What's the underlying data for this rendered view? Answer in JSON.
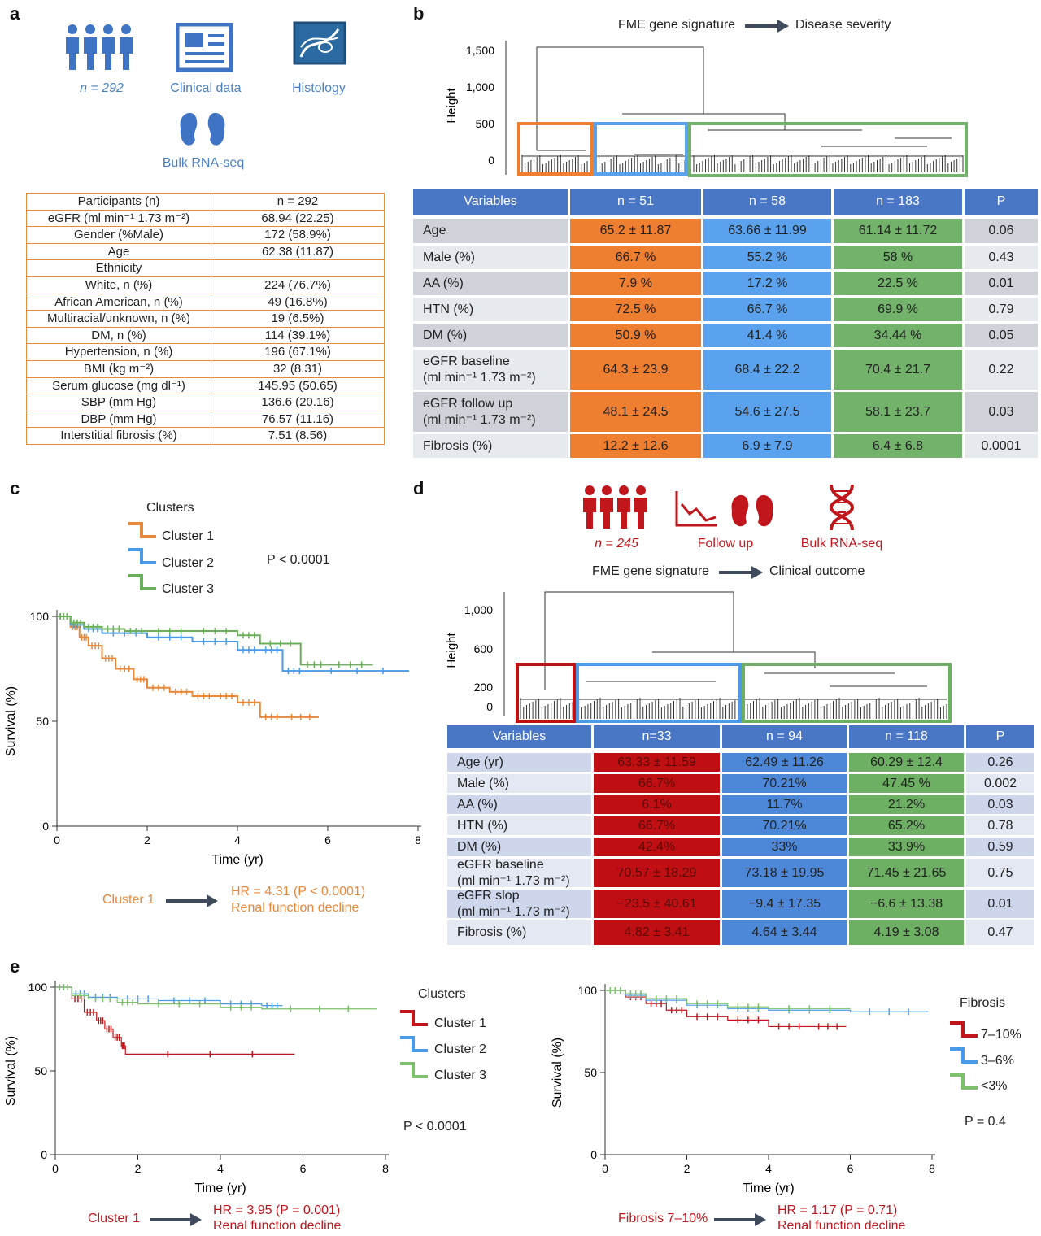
{
  "letters": {
    "a": "a",
    "b": "b",
    "c": "c",
    "d": "d",
    "e": "e"
  },
  "panel_a": {
    "icons": {
      "people": "people-icon",
      "clinical": "clinical-data-icon",
      "histology": "histology-icon",
      "kidney": "kidney-icon"
    },
    "n_label": "n = 292",
    "clinical_label": "Clinical data",
    "histology_label": "Histology",
    "rna_label": "Bulk RNA-seq",
    "table": [
      [
        "Participants (n)",
        "n = 292"
      ],
      [
        "eGFR (ml min⁻¹ 1.73 m⁻²)",
        "68.94 (22.25)"
      ],
      [
        "Gender (%Male)",
        "172 (58.9%)"
      ],
      [
        "Age",
        "62.38 (11.87)"
      ],
      [
        "Ethnicity",
        ""
      ],
      [
        "White, n (%)",
        "224 (76.7%)"
      ],
      [
        "African American, n (%)",
        "49 (16.8%)"
      ],
      [
        "Multiracial/unknown, n (%)",
        "19 (6.5%)"
      ],
      [
        "DM, n (%)",
        "114 (39.1%)"
      ],
      [
        "Hypertension, n (%)",
        "196 (67.1%)"
      ],
      [
        "BMI (kg m⁻²)",
        "32 (8.31)"
      ],
      [
        "Serum glucose (mg dl⁻¹)",
        "145.95 (50.65)"
      ],
      [
        "SBP (mm Hg)",
        "136.6 (20.16)"
      ],
      [
        "DBP (mm Hg)",
        "76.57 (11.16)"
      ],
      [
        "Interstitial fibrosis (%)",
        "7.51 (8.56)"
      ]
    ]
  },
  "panel_b": {
    "flow_left": "FME gene signature",
    "flow_right": "Disease severity",
    "dendro_ylabel": "Height",
    "dendro_ticks": [
      "1,500",
      "1,000",
      "500",
      "0"
    ],
    "headers": [
      "Variables",
      "n = 51",
      "n = 58",
      "n = 183",
      "P"
    ],
    "rows": [
      [
        "Age",
        "65.2 ± 11.87",
        "63.66 ± 11.99",
        "61.14 ± 11.72",
        "0.06"
      ],
      [
        "Male (%)",
        "66.7 %",
        "55.2 %",
        "58 %",
        "0.43"
      ],
      [
        "AA (%)",
        "7.9 %",
        "17.2 %",
        "22.5 %",
        "0.01"
      ],
      [
        "HTN (%)",
        "72.5 %",
        "66.7 %",
        "69.9 %",
        "0.79"
      ],
      [
        "DM (%)",
        "50.9 %",
        "41.4 %",
        "34.44 %",
        "0.05"
      ],
      [
        "eGFR baseline\n(ml min⁻¹ 1.73 m⁻²)",
        "64.3 ± 23.9",
        "68.4 ± 22.2",
        "70.4 ± 21.7",
        "0.22"
      ],
      [
        "eGFR follow up\n(ml min⁻¹ 1.73 m⁻²)",
        "48.1 ± 24.5",
        "54.6 ± 27.5",
        "58.1 ± 23.7",
        "0.03"
      ],
      [
        "Fibrosis (%)",
        "12.2 ± 12.6",
        "6.9 ± 7.9",
        "6.4 ± 6.8",
        "0.0001"
      ]
    ]
  },
  "panel_c": {
    "legend_title": "Clusters",
    "legend": [
      "Cluster 1",
      "Cluster 2",
      "Cluster 3"
    ],
    "p_value": "P < 0.0001",
    "xlabel": "Time (yr)",
    "ylabel": "Survival (%)",
    "xticks": [
      "0",
      "2",
      "4",
      "6",
      "8"
    ],
    "yticks": [
      "100",
      "50",
      "0"
    ],
    "flow_left": "Cluster 1",
    "flow_right_1": "HR = 4.31 (P < 0.0001)",
    "flow_right_2": "Renal function decline"
  },
  "panel_d": {
    "n_label": "n = 245",
    "follow_label": "Follow up",
    "rna_label": "Bulk RNA-seq",
    "flow_left": "FME gene signature",
    "flow_right": "Clinical outcome",
    "dendro_ylabel": "Height",
    "dendro_ticks": [
      "1,000",
      "600",
      "200",
      "0"
    ],
    "headers": [
      "Variables",
      "n=33",
      "n = 94",
      "n = 118",
      "P"
    ],
    "rows": [
      [
        "Age (yr)",
        "63.33 ± 11.59",
        "62.49 ± 11.26",
        "60.29 ± 12.4",
        "0.26"
      ],
      [
        "Male (%)",
        "66.7%",
        "70.21%",
        "47.45 %",
        "0.002"
      ],
      [
        "AA (%)",
        "6.1%",
        "11.7%",
        "21.2%",
        "0.03"
      ],
      [
        "HTN (%)",
        "66.7%",
        "70.21%",
        "65.2%",
        "0.78"
      ],
      [
        "DM (%)",
        "42.4%",
        "33%",
        "33.9%",
        "0.59"
      ],
      [
        "eGFR baseline\n(ml min⁻¹ 1.73 m⁻²)",
        "70.57 ± 18.29",
        "73.18 ± 19.95",
        "71.45 ± 21.65",
        "0.75"
      ],
      [
        "eGFR slop\n(ml min⁻¹ 1.73 m⁻²)",
        "−23.5 ± 40.61",
        "−9.4 ± 17.35",
        "−6.6 ± 13.38",
        "0.01"
      ],
      [
        "Fibrosis (%)",
        "4.82 ± 3.41",
        "4.64 ± 3.44",
        "4.19 ± 3.08",
        "0.47"
      ]
    ]
  },
  "panel_e": {
    "left": {
      "legend_title": "Clusters",
      "legend": [
        "Cluster 1",
        "Cluster 2",
        "Cluster 3"
      ],
      "p_value": "P < 0.0001",
      "xlabel": "Time (yr)",
      "ylabel": "Survival (%)",
      "flow_left": "Cluster 1",
      "flow_right_1": "HR = 3.95 (P = 0.001)",
      "flow_right_2": "Renal function decline"
    },
    "right": {
      "legend_title": "Fibrosis",
      "legend": [
        "7–10%",
        "3–6%",
        "<3%"
      ],
      "p_value": "P = 0.4",
      "xlabel": "Time  (yr)",
      "ylabel": "Survival (%)",
      "flow_left": "Fibrosis 7–10%",
      "flow_right_1": "HR = 1.17 (P = 0.71)",
      "flow_right_2": "Renal function decline"
    }
  },
  "chart_data": [
    {
      "type": "line",
      "panel": "c",
      "xlabel": "Time (yr)",
      "ylabel": "Survival (%)",
      "xlim": [
        0,
        8
      ],
      "ylim": [
        0,
        100
      ],
      "series": [
        {
          "name": "Cluster 1",
          "color": "#e8883a",
          "x": [
            0,
            0.3,
            0.5,
            0.7,
            1,
            1.3,
            1.7,
            2,
            2.5,
            3,
            3.5,
            4,
            4.5,
            5,
            5.8
          ],
          "y": [
            100,
            95,
            90,
            86,
            80,
            75,
            70,
            66,
            64,
            62,
            62,
            59,
            52,
            52,
            52
          ]
        },
        {
          "name": "Cluster 2",
          "color": "#4a9ae8",
          "x": [
            0,
            0.3,
            0.6,
            1,
            2,
            3,
            4,
            4.5,
            5,
            5.5,
            7.8
          ],
          "y": [
            100,
            96,
            94,
            92,
            90,
            88,
            84,
            84,
            74,
            74,
            74
          ]
        },
        {
          "name": "Cluster 3",
          "color": "#6aaf5a",
          "x": [
            0,
            0.3,
            0.6,
            1,
            1.5,
            2,
            3,
            4,
            4.5,
            5.4,
            6,
            7
          ],
          "y": [
            100,
            97,
            95,
            94,
            93,
            93,
            93,
            91,
            87,
            77,
            77,
            77
          ]
        }
      ]
    },
    {
      "type": "line",
      "panel": "e-left",
      "xlabel": "Time (yr)",
      "ylabel": "Survival (%)",
      "xlim": [
        0,
        8
      ],
      "ylim": [
        0,
        100
      ],
      "series": [
        {
          "name": "Cluster 1",
          "color": "#c0161c",
          "x": [
            0,
            0.4,
            0.7,
            1,
            1.2,
            1.4,
            1.6,
            1.7,
            5.8
          ],
          "y": [
            100,
            93,
            85,
            80,
            75,
            70,
            65,
            60,
            60
          ]
        },
        {
          "name": "Cluster 2",
          "color": "#4a9ae8",
          "x": [
            0,
            0.4,
            0.8,
            1.5,
            2.5,
            4,
            5,
            5.5
          ],
          "y": [
            100,
            96,
            94,
            93,
            92,
            90,
            89,
            89
          ]
        },
        {
          "name": "Cluster 3",
          "color": "#7ec06c",
          "x": [
            0,
            0.4,
            0.8,
            1.5,
            2,
            4,
            5,
            7.8
          ],
          "y": [
            100,
            95,
            93,
            91,
            90,
            88,
            87,
            87
          ]
        }
      ]
    },
    {
      "type": "line",
      "panel": "e-right",
      "xlabel": "Time  (yr)",
      "ylabel": "Survival (%)",
      "xlim": [
        0,
        8
      ],
      "ylim": [
        0,
        100
      ],
      "series": [
        {
          "name": "7–10%",
          "color": "#c0161c",
          "x": [
            0,
            0.5,
            1,
            1.5,
            2,
            3,
            4,
            5,
            5.9
          ],
          "y": [
            100,
            96,
            92,
            88,
            84,
            82,
            78,
            78,
            78
          ]
        },
        {
          "name": "3–6%",
          "color": "#4a9ae8",
          "x": [
            0,
            0.5,
            1,
            2,
            3,
            4,
            6,
            7.9
          ],
          "y": [
            100,
            97,
            94,
            91,
            89,
            88,
            87,
            87
          ]
        },
        {
          "name": "<3%",
          "color": "#7ec06c",
          "x": [
            0,
            0.5,
            1,
            2,
            3,
            4,
            6
          ],
          "y": [
            100,
            98,
            95,
            92,
            90,
            89,
            89
          ]
        }
      ]
    }
  ]
}
